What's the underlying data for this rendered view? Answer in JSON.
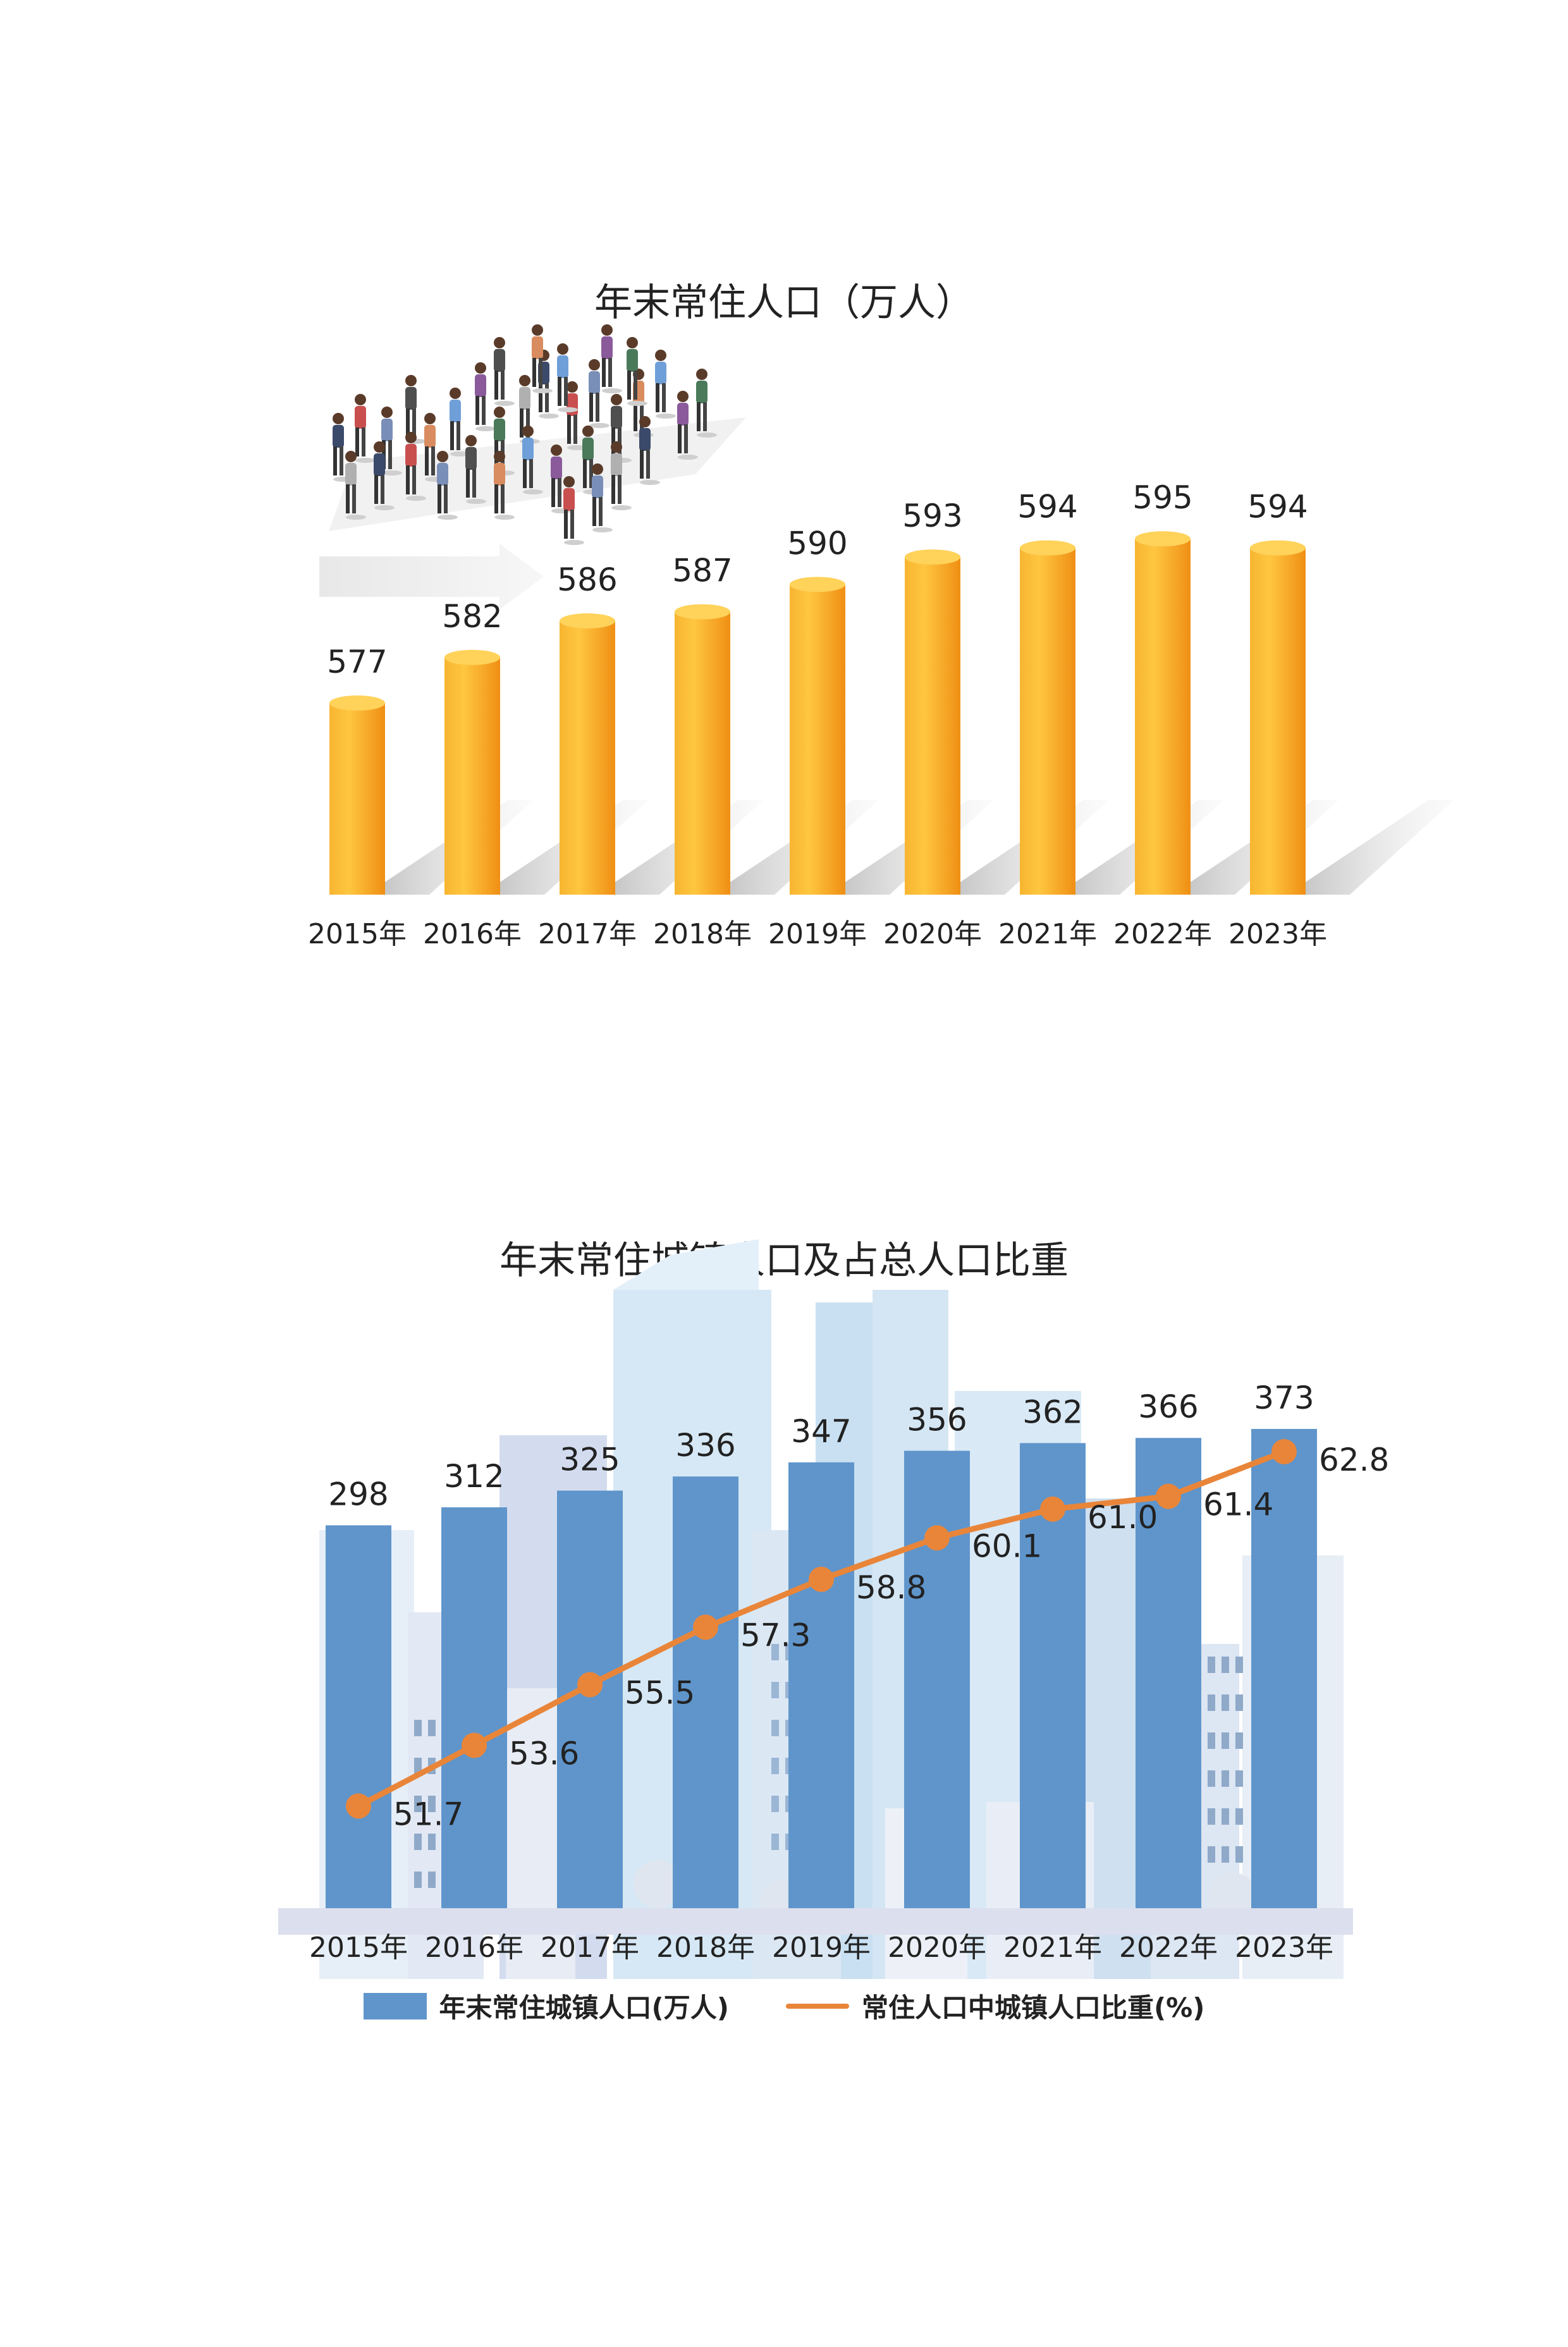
{
  "chart_data": [
    {
      "type": "bar",
      "title": "年末常住人口（万人）",
      "categories": [
        "2015年",
        "2016年",
        "2017年",
        "2018年",
        "2019年",
        "2020年",
        "2021年",
        "2022年",
        "2023年"
      ],
      "values": [
        577,
        582,
        586,
        587,
        590,
        593,
        594,
        595,
        594
      ],
      "ylim": [
        556,
        600
      ],
      "colors": {
        "bar": "#f5a623",
        "bar_highlight": "#ffd25a"
      }
    },
    {
      "type": "bar+line",
      "title": "年末常住城镇人口及占总人口比重",
      "categories": [
        "2015年",
        "2016年",
        "2017年",
        "2018年",
        "2019年",
        "2020年",
        "2021年",
        "2022年",
        "2023年"
      ],
      "series": [
        {
          "name": "年末常住城镇人口(万人)",
          "type": "bar",
          "values": [
            298,
            312,
            325,
            336,
            347,
            356,
            362,
            366,
            373
          ],
          "color": "#5f95cb"
        },
        {
          "name": "常住人口中城镇人口比重(%)",
          "type": "line",
          "values": [
            51.7,
            53.6,
            55.5,
            57.3,
            58.8,
            60.1,
            61.0,
            61.4,
            62.8
          ],
          "color": "#e98539"
        }
      ],
      "bar_ylim": [
        0,
        373
      ],
      "line_ylim": [
        48.5,
        64.7
      ],
      "legend_position": "bottom"
    }
  ]
}
